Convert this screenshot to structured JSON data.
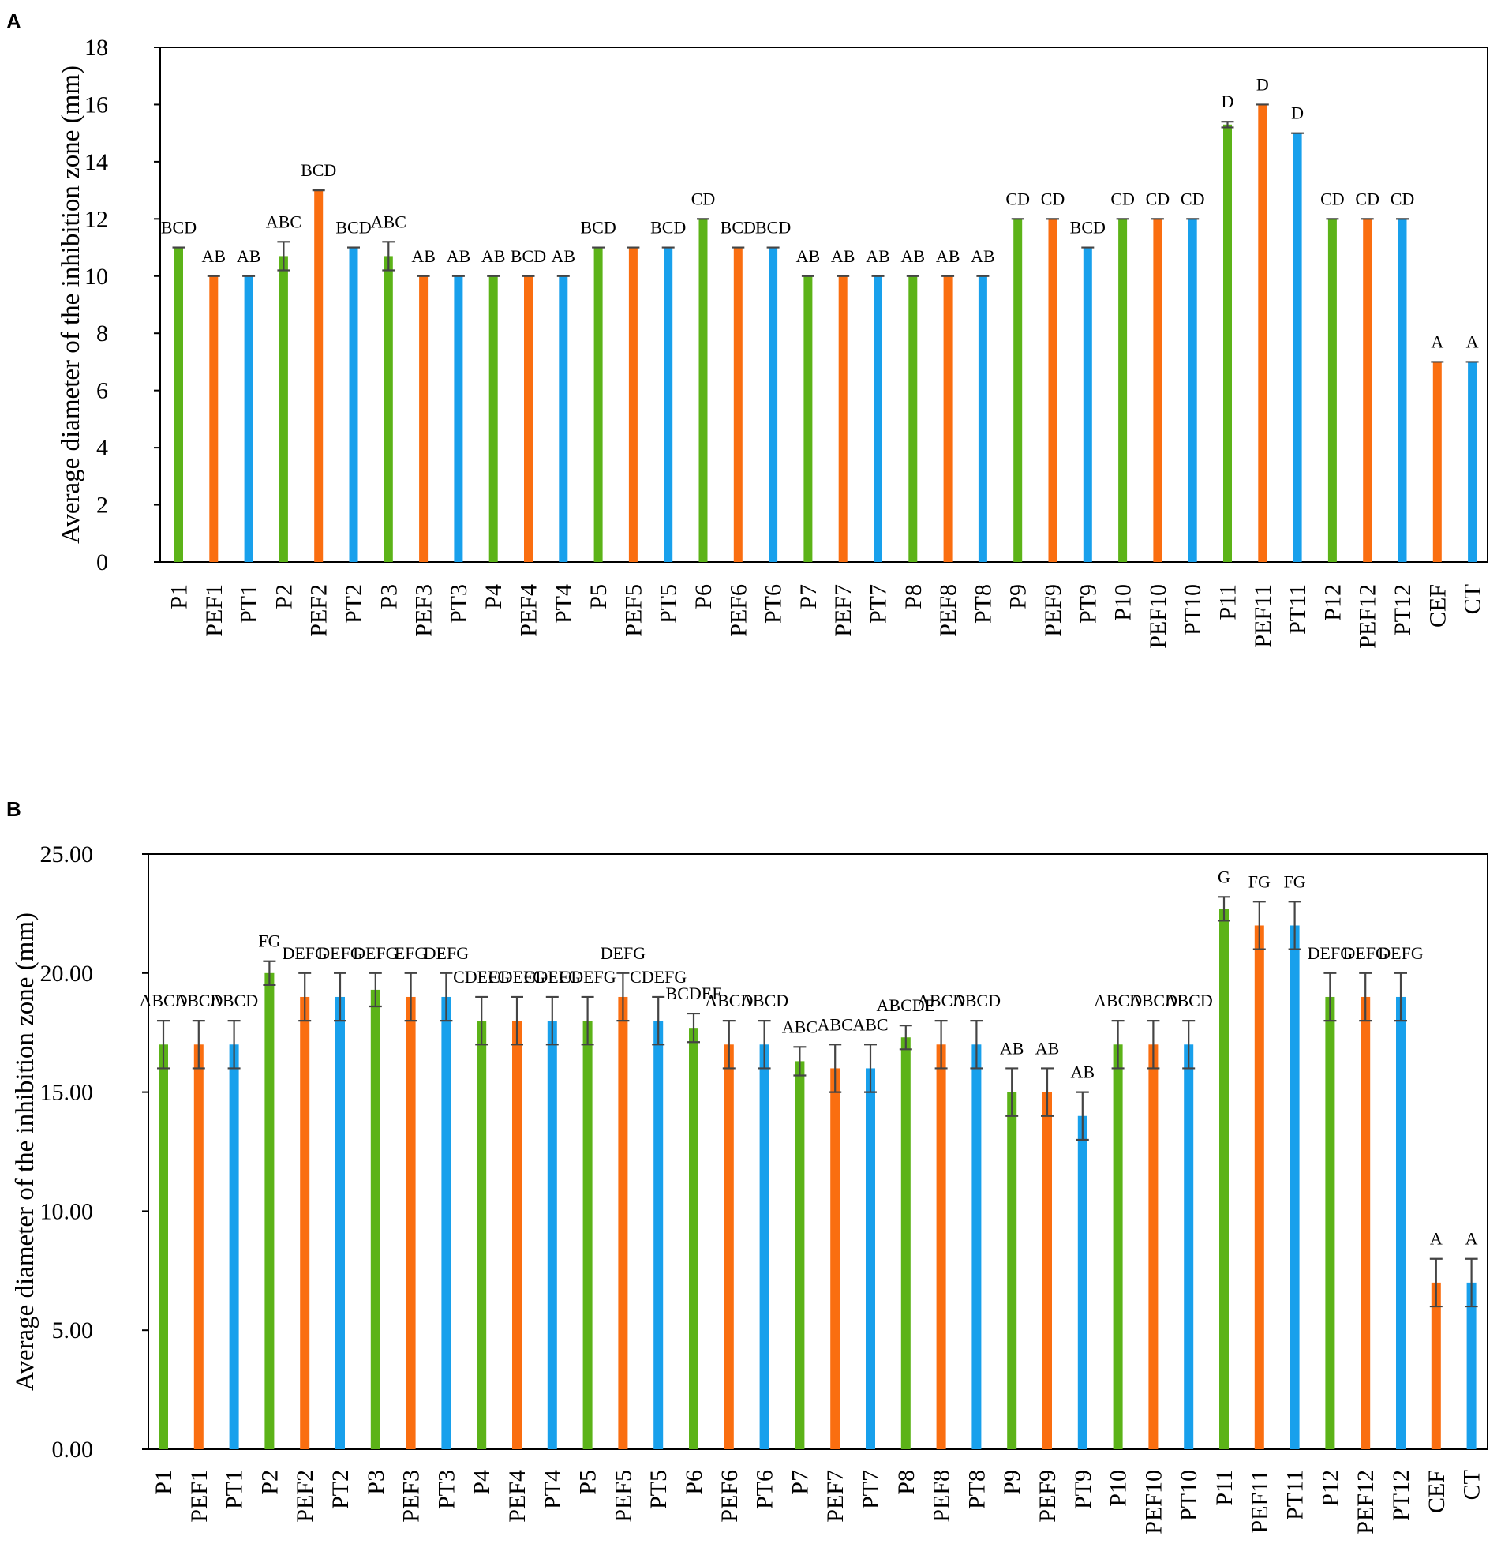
{
  "chart_data": [
    {
      "panel": "A",
      "type": "bar",
      "ylabel": "Average diameter of the inhibition zone (mm)",
      "ylim": [
        0,
        18
      ],
      "yticks": [
        0,
        2,
        4,
        6,
        8,
        10,
        12,
        14,
        16,
        18
      ],
      "ytick_labels": [
        "0",
        "2",
        "4",
        "6",
        "8",
        "10",
        "12",
        "14",
        "16",
        "18"
      ],
      "categories": [
        "P1",
        "PEF1",
        "PT1",
        "P2",
        "PEF2",
        "PT2",
        "P3",
        "PEF3",
        "PT3",
        "P4",
        "PEF4",
        "PT4",
        "P5",
        "PEF5",
        "PT5",
        "P6",
        "PEF6",
        "PT6",
        "P7",
        "PEF7",
        "PT7",
        "P8",
        "PEF8",
        "PT8",
        "P9",
        "PEF9",
        "PT9",
        "P10",
        "PEF10",
        "PT10",
        "P11",
        "PEF11",
        "PT11",
        "P12",
        "PEF12",
        "PT12",
        "CEF",
        "CT"
      ],
      "values": [
        11,
        10,
        10,
        10.7,
        13,
        11,
        10.7,
        10,
        10,
        10,
        10,
        10,
        11,
        11,
        11,
        12,
        11,
        11,
        10,
        10,
        10,
        10,
        10,
        10,
        12,
        12,
        11,
        12,
        12,
        12,
        15.3,
        16,
        15,
        12,
        12,
        12,
        7,
        7
      ],
      "errors": [
        0,
        0,
        0,
        0.5,
        0,
        0,
        0.5,
        0,
        0,
        0,
        0,
        0,
        0,
        0,
        0,
        0,
        0,
        0,
        0,
        0,
        0,
        0,
        0,
        0,
        0,
        0,
        0,
        0,
        0,
        0,
        0.1,
        0,
        0,
        0,
        0,
        0,
        0,
        0
      ],
      "significance": [
        "BCD",
        "AB",
        "AB",
        "ABC",
        "BCD",
        "BCD",
        "ABC",
        "AB",
        "AB",
        "AB",
        "BCD",
        "AB",
        "BCD",
        "",
        "BCD",
        "CD",
        "BCD",
        "BCD",
        "AB",
        "AB",
        "AB",
        "AB",
        "AB",
        "AB",
        "CD",
        "CD",
        "BCD",
        "CD",
        "CD",
        "CD",
        "D",
        "D",
        "D",
        "CD",
        "CD",
        "CD",
        "A",
        "A"
      ],
      "colors": [
        "#5cb318",
        "#fa6e10",
        "#18a0ec",
        "#5cb318",
        "#fa6e10",
        "#18a0ec",
        "#5cb318",
        "#fa6e10",
        "#18a0ec",
        "#5cb318",
        "#fa6e10",
        "#18a0ec",
        "#5cb318",
        "#fa6e10",
        "#18a0ec",
        "#5cb318",
        "#fa6e10",
        "#18a0ec",
        "#5cb318",
        "#fa6e10",
        "#18a0ec",
        "#5cb318",
        "#fa6e10",
        "#18a0ec",
        "#5cb318",
        "#fa6e10",
        "#18a0ec",
        "#5cb318",
        "#fa6e10",
        "#18a0ec",
        "#5cb318",
        "#fa6e10",
        "#18a0ec",
        "#5cb318",
        "#fa6e10",
        "#18a0ec",
        "#fa6e10",
        "#18a0ec"
      ]
    },
    {
      "panel": "B",
      "type": "bar",
      "ylabel": "Average diameter of the inhibition zone (mm)",
      "ylim": [
        0,
        25
      ],
      "yticks": [
        0,
        5,
        10,
        15,
        20,
        25
      ],
      "ytick_labels": [
        "0.00",
        "5.00",
        "10.00",
        "15.00",
        "20.00",
        "25.00"
      ],
      "categories": [
        "P1",
        "PEF1",
        "PT1",
        "P2",
        "PEF2",
        "PT2",
        "P3",
        "PEF3",
        "PT3",
        "P4",
        "PEF4",
        "PT4",
        "P5",
        "PEF5",
        "PT5",
        "P6",
        "PEF6",
        "PT6",
        "P7",
        "PEF7",
        "PT7",
        "P8",
        "PEF8",
        "PT8",
        "P9",
        "PEF9",
        "PT9",
        "P10",
        "PEF10",
        "PT10",
        "P11",
        "PEF11",
        "PT11",
        "P12",
        "PEF12",
        "PT12",
        "CEF",
        "CT"
      ],
      "values": [
        17,
        17,
        17,
        20,
        19,
        19,
        19.3,
        19,
        19,
        18,
        18,
        18,
        18,
        19,
        18,
        17.7,
        17,
        17,
        16.3,
        16,
        16,
        17.3,
        17,
        17,
        15,
        15,
        14,
        17,
        17,
        17,
        22.7,
        22,
        22,
        19,
        19,
        19,
        7,
        7
      ],
      "errors": [
        1,
        1,
        1,
        0.5,
        1,
        1,
        0.7,
        1,
        1,
        1,
        1,
        1,
        1,
        1,
        1,
        0.6,
        1,
        1,
        0.6,
        1,
        1,
        0.5,
        1,
        1,
        1,
        1,
        1,
        1,
        1,
        1,
        0.5,
        1,
        1,
        1,
        1,
        1,
        1,
        1
      ],
      "significance": [
        "ABCD",
        "ABCD",
        "ABCD",
        "FG",
        "DEFG",
        "DEFG",
        "DEFG",
        "EFG",
        "DEFG",
        "CDEFG",
        "CDEFG",
        "CDEFG",
        "CDEFG",
        "DEFG",
        "CDEFG",
        "BCDEF",
        "ABCD",
        "ABCD",
        "ABC",
        "ABC",
        "ABC",
        "ABCDE",
        "ABCD",
        "ABCD",
        "AB",
        "AB",
        "AB",
        "ABCD",
        "ABCD",
        "ABCD",
        "G",
        "FG",
        "FG",
        "DEFG",
        "DEFG",
        "DEFG",
        "A",
        "A"
      ],
      "colors": [
        "#5cb318",
        "#fa6e10",
        "#18a0ec",
        "#5cb318",
        "#fa6e10",
        "#18a0ec",
        "#5cb318",
        "#fa6e10",
        "#18a0ec",
        "#5cb318",
        "#fa6e10",
        "#18a0ec",
        "#5cb318",
        "#fa6e10",
        "#18a0ec",
        "#5cb318",
        "#fa6e10",
        "#18a0ec",
        "#5cb318",
        "#fa6e10",
        "#18a0ec",
        "#5cb318",
        "#fa6e10",
        "#18a0ec",
        "#5cb318",
        "#fa6e10",
        "#18a0ec",
        "#5cb318",
        "#fa6e10",
        "#18a0ec",
        "#5cb318",
        "#fa6e10",
        "#18a0ec",
        "#5cb318",
        "#fa6e10",
        "#18a0ec",
        "#fa6e10",
        "#18a0ec"
      ]
    }
  ]
}
